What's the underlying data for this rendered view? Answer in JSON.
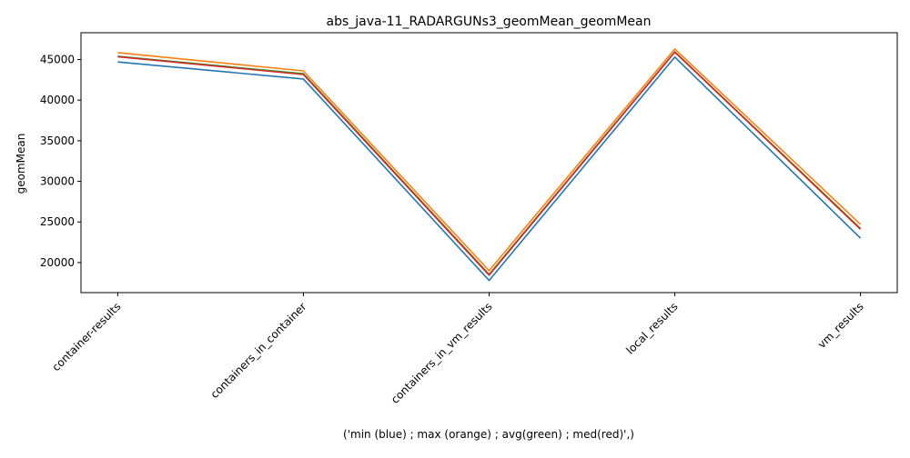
{
  "chart_data": {
    "type": "line",
    "title": "abs_java-11_RADARGUNs3_geomMean_geomMean",
    "xlabel": "('min (blue) ; max (orange) ; avg(green) ; med(red)',)",
    "ylabel": "geomMean",
    "categories": [
      "container-results",
      "containers_in_container",
      "containers_in_vm_results",
      "local_results",
      "vm_results"
    ],
    "ylim": [
      16300,
      48300
    ],
    "yticks": [
      20000,
      25000,
      30000,
      35000,
      40000,
      45000
    ],
    "grid": false,
    "series": [
      {
        "key": "min",
        "color": "#1f77b4",
        "values": [
          44700,
          42600,
          17800,
          45300,
          23000
        ]
      },
      {
        "key": "avg",
        "color": "#2ca02c",
        "values": [
          45400,
          43250,
          18550,
          45950,
          24200
        ]
      },
      {
        "key": "med",
        "color": "#d62728",
        "values": [
          45350,
          43150,
          18450,
          45900,
          24100
        ]
      },
      {
        "key": "max",
        "color": "#ff7f0e",
        "values": [
          45850,
          43600,
          19000,
          46300,
          24700
        ]
      }
    ]
  }
}
